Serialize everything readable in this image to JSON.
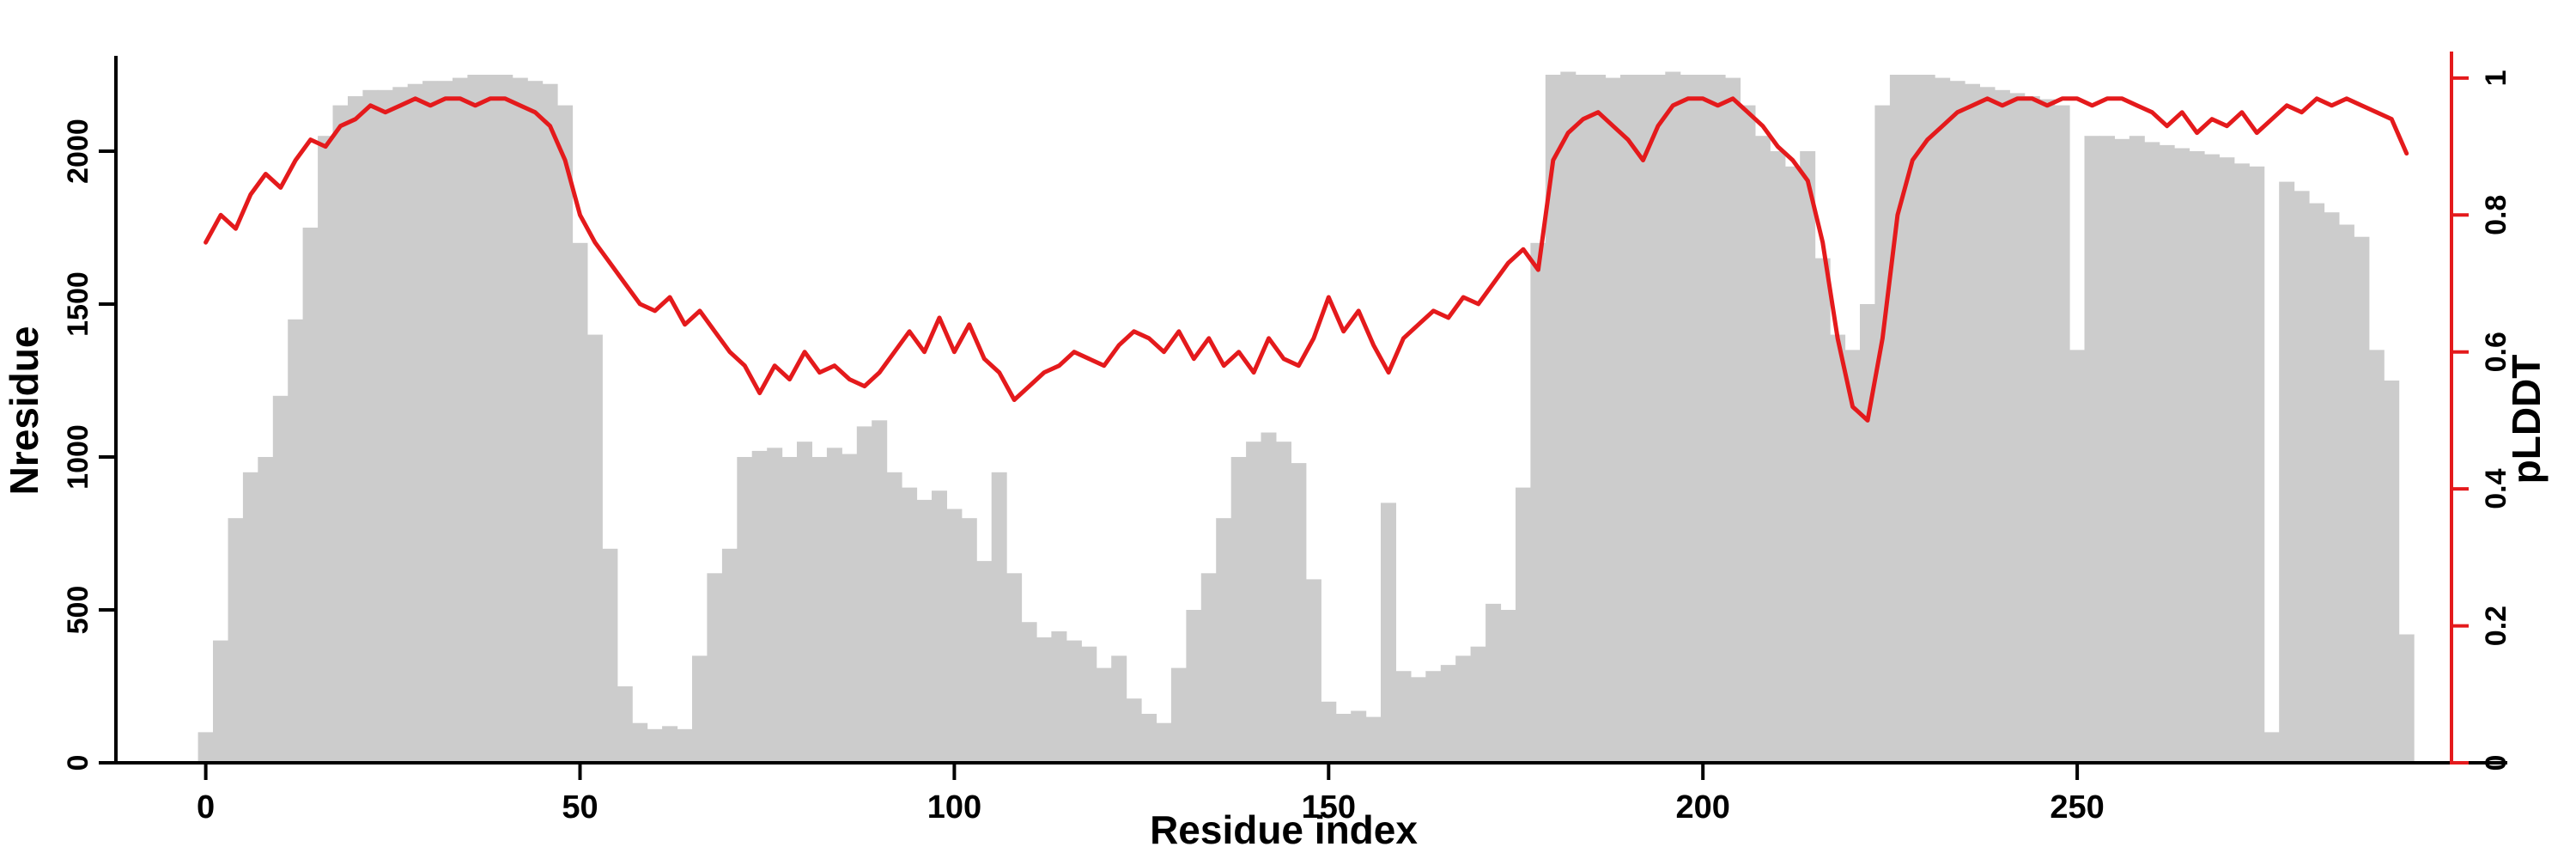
{
  "figure": {
    "background": "#ffffff"
  },
  "chart_data": {
    "type": "bar",
    "subtype": "dual-axis bar + line",
    "title": "",
    "xlabel": "Residue index",
    "xlim": [
      -12,
      300
    ],
    "x_ticks": [
      0,
      50,
      100,
      150,
      200,
      250
    ],
    "x_tick_labels": [
      "0",
      "50",
      "100",
      "150",
      "200",
      "250"
    ],
    "x_start": 0,
    "x_step": 2,
    "bar_color": "#cccccc",
    "line_color": "#e41a1c",
    "left_axis": {
      "label": "Nresidue",
      "color": "#000000",
      "lim": [
        0,
        2340
      ],
      "ticks": [
        0,
        500,
        1000,
        1500,
        2000
      ],
      "tick_labels": [
        "0",
        "500",
        "1000",
        "1500",
        "2000"
      ]
    },
    "right_axis": {
      "label": "pLDDT",
      "color": "#e41a1c",
      "lim": [
        0,
        1.045
      ],
      "ticks": [
        0,
        0.2,
        0.4,
        0.6,
        0.8,
        1
      ],
      "tick_labels": [
        "0",
        "0.2",
        "0.4",
        "0.6",
        "0.8",
        "1"
      ]
    },
    "series": [
      {
        "name": "Nresidue",
        "type": "bar",
        "axis": "left"
      },
      {
        "name": "pLDDT",
        "type": "line",
        "axis": "right"
      }
    ],
    "nresidue": [
      100,
      400,
      800,
      950,
      1000,
      1200,
      1450,
      1750,
      2050,
      2150,
      2180,
      2200,
      2200,
      2210,
      2220,
      2230,
      2230,
      2240,
      2250,
      2250,
      2250,
      2240,
      2230,
      2220,
      2150,
      1700,
      1400,
      700,
      250,
      130,
      110,
      120,
      110,
      350,
      620,
      700,
      1000,
      1020,
      1030,
      1000,
      1050,
      1000,
      1030,
      1010,
      1100,
      1120,
      950,
      900,
      860,
      890,
      830,
      800,
      660,
      950,
      620,
      460,
      410,
      430,
      400,
      380,
      310,
      350,
      210,
      160,
      130,
      310,
      500,
      620,
      800,
      1000,
      1050,
      1080,
      1050,
      980,
      600,
      200,
      160,
      170,
      150,
      850,
      300,
      280,
      300,
      320,
      350,
      380,
      520,
      500,
      900,
      1700,
      2250,
      2260,
      2250,
      2250,
      2240,
      2250,
      2250,
      2250,
      2260,
      2250,
      2250,
      2250,
      2240,
      2150,
      2050,
      2000,
      1950,
      2000,
      1650,
      1400,
      1350,
      1500,
      2150,
      2250,
      2250,
      2250,
      2240,
      2230,
      2220,
      2210,
      2200,
      2190,
      2180,
      2170,
      2150,
      1350,
      2050,
      2050,
      2040,
      2050,
      2030,
      2020,
      2010,
      2000,
      1990,
      1980,
      1960,
      1950,
      100,
      1900,
      1870,
      1830,
      1800,
      1760,
      1720,
      1350,
      1250,
      420
    ],
    "plddt": [
      0.76,
      0.8,
      0.78,
      0.83,
      0.86,
      0.84,
      0.88,
      0.91,
      0.9,
      0.93,
      0.94,
      0.96,
      0.95,
      0.96,
      0.97,
      0.96,
      0.97,
      0.97,
      0.96,
      0.97,
      0.97,
      0.96,
      0.95,
      0.93,
      0.88,
      0.8,
      0.76,
      0.73,
      0.7,
      0.67,
      0.66,
      0.68,
      0.64,
      0.66,
      0.63,
      0.6,
      0.58,
      0.54,
      0.58,
      0.56,
      0.6,
      0.57,
      0.58,
      0.56,
      0.55,
      0.57,
      0.6,
      0.63,
      0.6,
      0.65,
      0.6,
      0.64,
      0.59,
      0.57,
      0.53,
      0.55,
      0.57,
      0.58,
      0.6,
      0.59,
      0.58,
      0.61,
      0.63,
      0.62,
      0.6,
      0.63,
      0.59,
      0.62,
      0.58,
      0.6,
      0.57,
      0.62,
      0.59,
      0.58,
      0.62,
      0.68,
      0.63,
      0.66,
      0.61,
      0.57,
      0.62,
      0.64,
      0.66,
      0.65,
      0.68,
      0.67,
      0.7,
      0.73,
      0.75,
      0.72,
      0.88,
      0.92,
      0.94,
      0.95,
      0.93,
      0.91,
      0.88,
      0.93,
      0.96,
      0.97,
      0.97,
      0.96,
      0.97,
      0.95,
      0.93,
      0.9,
      0.88,
      0.85,
      0.76,
      0.62,
      0.52,
      0.5,
      0.62,
      0.8,
      0.88,
      0.91,
      0.93,
      0.95,
      0.96,
      0.97,
      0.96,
      0.97,
      0.97,
      0.96,
      0.97,
      0.97,
      0.96,
      0.97,
      0.97,
      0.96,
      0.95,
      0.93,
      0.95,
      0.92,
      0.94,
      0.93,
      0.95,
      0.92,
      0.94,
      0.96,
      0.95,
      0.97,
      0.96,
      0.97,
      0.96,
      0.95,
      0.94,
      0.89
    ]
  }
}
